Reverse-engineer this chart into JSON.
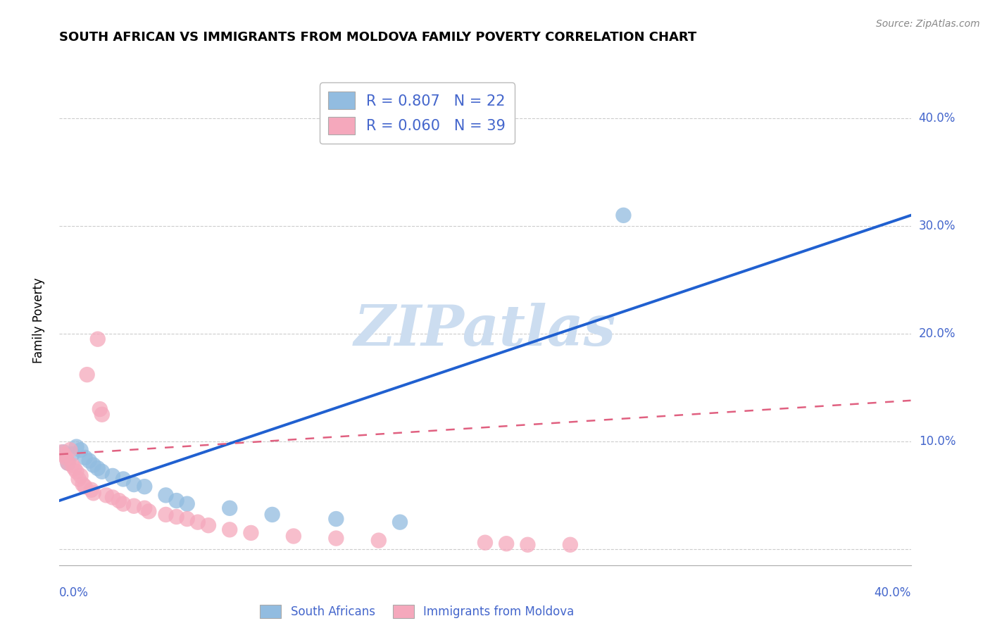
{
  "title": "SOUTH AFRICAN VS IMMIGRANTS FROM MOLDOVA FAMILY POVERTY CORRELATION CHART",
  "source": "Source: ZipAtlas.com",
  "ylabel": "Family Poverty",
  "xlim": [
    0.0,
    0.4
  ],
  "ylim": [
    -0.015,
    0.44
  ],
  "r_blue": 0.807,
  "n_blue": 22,
  "r_pink": 0.06,
  "n_pink": 39,
  "legend_labels": [
    "South Africans",
    "Immigrants from Moldova"
  ],
  "blue_color": "#92bce0",
  "pink_color": "#f5a8bc",
  "line_blue": "#2060d0",
  "line_pink": "#e06080",
  "watermark": "ZIPatlas",
  "watermark_color": "#ccddf0",
  "blue_scatter_x": [
    0.002,
    0.004,
    0.006,
    0.008,
    0.01,
    0.012,
    0.014,
    0.016,
    0.018,
    0.02,
    0.025,
    0.03,
    0.035,
    0.04,
    0.05,
    0.055,
    0.06,
    0.08,
    0.1,
    0.13,
    0.16,
    0.265
  ],
  "blue_scatter_y": [
    0.09,
    0.08,
    0.088,
    0.095,
    0.092,
    0.085,
    0.082,
    0.078,
    0.075,
    0.072,
    0.068,
    0.065,
    0.06,
    0.058,
    0.05,
    0.045,
    0.042,
    0.038,
    0.032,
    0.028,
    0.025,
    0.31
  ],
  "pink_scatter_x": [
    0.001,
    0.002,
    0.003,
    0.004,
    0.005,
    0.006,
    0.007,
    0.008,
    0.009,
    0.01,
    0.011,
    0.012,
    0.013,
    0.015,
    0.016,
    0.018,
    0.019,
    0.02,
    0.022,
    0.025,
    0.028,
    0.03,
    0.035,
    0.04,
    0.042,
    0.05,
    0.055,
    0.06,
    0.065,
    0.07,
    0.08,
    0.09,
    0.11,
    0.13,
    0.15,
    0.2,
    0.21,
    0.22,
    0.24
  ],
  "pink_scatter_y": [
    0.09,
    0.088,
    0.085,
    0.08,
    0.092,
    0.078,
    0.075,
    0.072,
    0.065,
    0.068,
    0.06,
    0.058,
    0.162,
    0.055,
    0.052,
    0.195,
    0.13,
    0.125,
    0.05,
    0.048,
    0.045,
    0.042,
    0.04,
    0.038,
    0.035,
    0.032,
    0.03,
    0.028,
    0.025,
    0.022,
    0.018,
    0.015,
    0.012,
    0.01,
    0.008,
    0.006,
    0.005,
    0.004,
    0.004
  ],
  "blue_trend_x0": 0.0,
  "blue_trend_x1": 0.4,
  "blue_trend_y0": 0.045,
  "blue_trend_y1": 0.31,
  "pink_trend_x0": 0.0,
  "pink_trend_x1": 0.4,
  "pink_trend_y0": 0.088,
  "pink_trend_y1": 0.138,
  "grid_color": "#cccccc",
  "title_fontsize": 13,
  "label_color": "#4466cc",
  "axis_tick_color": "#4466cc"
}
